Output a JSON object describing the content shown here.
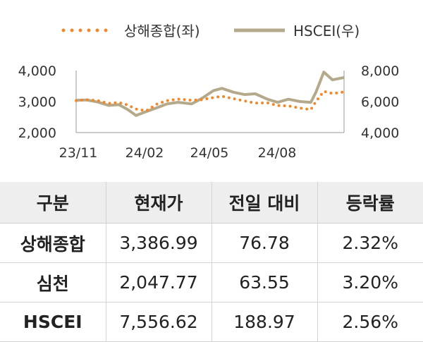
{
  "chart_data": {
    "type": "line",
    "legend": [
      "상해종합(좌)",
      "HSCEI(우)"
    ],
    "legend_placement": "top",
    "x_ticks": [
      "23/11",
      "24/02",
      "24/05",
      "24/08"
    ],
    "left_axis": {
      "ticks": [
        "4,000",
        "3,000",
        "2,000"
      ],
      "ylim": [
        2000,
        4000
      ]
    },
    "right_axis": {
      "ticks": [
        "8,000",
        "6,000",
        "4,000"
      ],
      "ylim": [
        4000,
        8000
      ]
    },
    "x_range": [
      "2023-10-31",
      "2024-11-05"
    ],
    "series": [
      {
        "name": "상해종합(좌)",
        "axis": "left",
        "style": "dotted",
        "color": "#f0882d",
        "points": [
          [
            "2023-10-31",
            3030
          ],
          [
            "2023-11-15",
            3060
          ],
          [
            "2023-11-30",
            3030
          ],
          [
            "2023-12-15",
            2940
          ],
          [
            "2023-12-29",
            2970
          ],
          [
            "2024-01-10",
            2890
          ],
          [
            "2024-01-22",
            2760
          ],
          [
            "2024-02-05",
            2700
          ],
          [
            "2024-02-20",
            2920
          ],
          [
            "2024-03-05",
            3030
          ],
          [
            "2024-03-20",
            3080
          ],
          [
            "2024-04-08",
            3040
          ],
          [
            "2024-04-22",
            3060
          ],
          [
            "2024-05-08",
            3130
          ],
          [
            "2024-05-20",
            3170
          ],
          [
            "2024-06-05",
            3090
          ],
          [
            "2024-06-20",
            3020
          ],
          [
            "2024-07-05",
            2950
          ],
          [
            "2024-07-22",
            2960
          ],
          [
            "2024-08-05",
            2870
          ],
          [
            "2024-08-20",
            2860
          ],
          [
            "2024-09-05",
            2790
          ],
          [
            "2024-09-20",
            2740
          ],
          [
            "2024-09-27",
            3000
          ],
          [
            "2024-10-08",
            3330
          ],
          [
            "2024-10-20",
            3260
          ],
          [
            "2024-11-05",
            3310
          ]
        ]
      },
      {
        "name": "HSCEI(우)",
        "axis": "right",
        "style": "solid",
        "color": "#b5a98c",
        "points": [
          [
            "2023-10-31",
            6080
          ],
          [
            "2023-11-15",
            6100
          ],
          [
            "2023-11-30",
            5970
          ],
          [
            "2023-12-15",
            5750
          ],
          [
            "2023-12-29",
            5800
          ],
          [
            "2024-01-10",
            5500
          ],
          [
            "2024-01-22",
            5100
          ],
          [
            "2024-02-05",
            5350
          ],
          [
            "2024-02-20",
            5600
          ],
          [
            "2024-03-05",
            5850
          ],
          [
            "2024-03-20",
            5950
          ],
          [
            "2024-04-08",
            5850
          ],
          [
            "2024-04-22",
            6200
          ],
          [
            "2024-05-08",
            6700
          ],
          [
            "2024-05-20",
            6850
          ],
          [
            "2024-06-05",
            6600
          ],
          [
            "2024-06-20",
            6450
          ],
          [
            "2024-07-05",
            6500
          ],
          [
            "2024-07-22",
            6150
          ],
          [
            "2024-08-05",
            5950
          ],
          [
            "2024-08-20",
            6150
          ],
          [
            "2024-09-05",
            6000
          ],
          [
            "2024-09-20",
            5950
          ],
          [
            "2024-09-27",
            6600
          ],
          [
            "2024-10-08",
            7900
          ],
          [
            "2024-10-20",
            7400
          ],
          [
            "2024-11-05",
            7550
          ]
        ]
      }
    ]
  },
  "table": {
    "headers": [
      "구분",
      "현재가",
      "전일 대비",
      "등락률"
    ],
    "rows": [
      [
        "상해종합",
        "3,386.99",
        "76.78",
        "2.32%"
      ],
      [
        "심천",
        "2,047.77",
        "63.55",
        "3.20%"
      ],
      [
        "HSCEI",
        "7,556.62",
        "188.97",
        "2.56%"
      ]
    ]
  }
}
